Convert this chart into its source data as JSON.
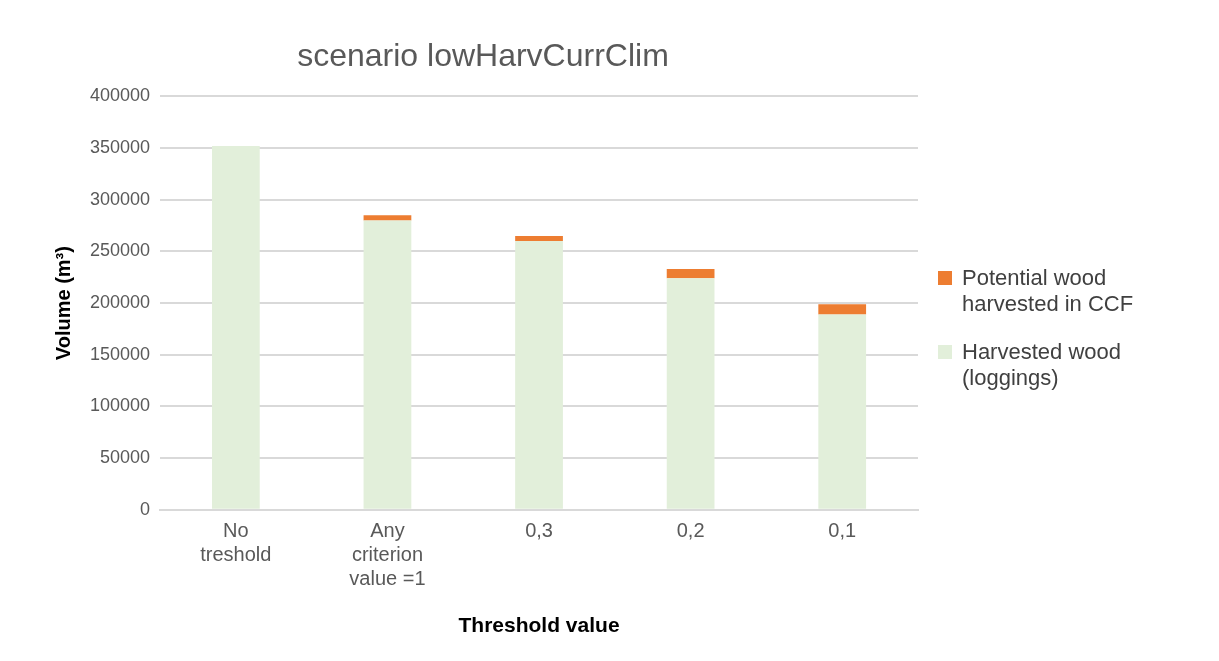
{
  "chart_data": {
    "type": "bar",
    "title": "scenario lowHarvCurrClim",
    "xlabel": "Threshold value",
    "ylabel": "Volume (m³)",
    "categories": [
      "No treshold",
      "Any criterion value =1",
      "0,3",
      "0,2",
      "0,1"
    ],
    "stacked": true,
    "series": [
      {
        "name": "Harvested wood (loggings)",
        "color": "#e2efda",
        "values": [
          352000,
          280000,
          260000,
          224000,
          189000
        ]
      },
      {
        "name": "Potential wood harvested in CCF",
        "color": "#ed7d31",
        "values": [
          null,
          5000,
          5000,
          9000,
          10000
        ]
      }
    ],
    "ylim": [
      0,
      400000
    ],
    "yticks": [
      0,
      50000,
      100000,
      150000,
      200000,
      250000,
      300000,
      350000,
      400000
    ],
    "grid": "y",
    "legend": "right"
  }
}
